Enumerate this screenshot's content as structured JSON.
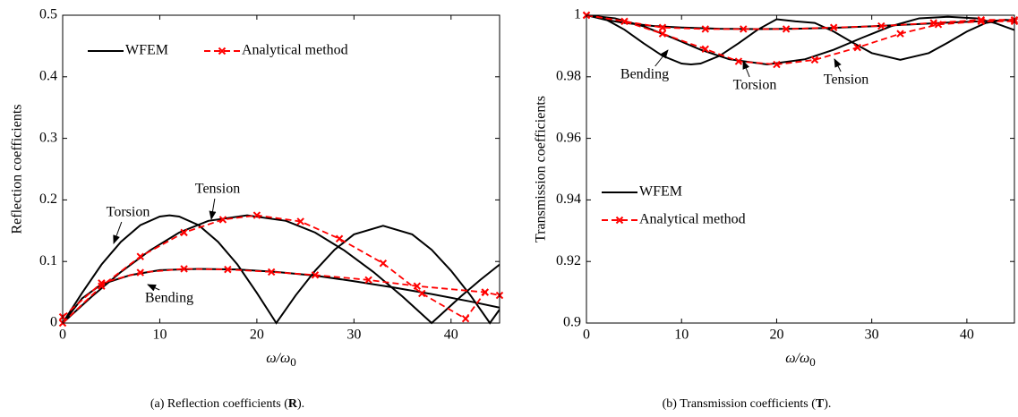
{
  "chart_data": [
    {
      "type": "line",
      "ylabel": "Reflection coefficients",
      "xlabel": "ω/ω",
      "xlabel_sub": "0",
      "caption_parts": [
        "(a)  Reflection coefficients (",
        "R",
        ")."
      ],
      "xlim": [
        0,
        45
      ],
      "xticks": [
        0,
        10,
        20,
        30,
        40
      ],
      "ylim": [
        0,
        0.5
      ],
      "yticks": [
        0,
        0.1,
        0.2,
        0.3,
        0.4,
        0.5
      ],
      "legend_loc": "upper left",
      "annotations": [
        "Torsion",
        "Tension",
        "Bending"
      ],
      "series": [
        {
          "name": "WFEM",
          "color": "#000000",
          "dashed": false,
          "marker": false,
          "curves": [
            {
              "x": [
                0,
                2,
                4,
                6,
                8,
                10,
                11,
                12,
                14,
                16,
                18,
                20,
                22,
                24,
                26,
                28,
                30,
                33,
                36,
                38,
                40,
                42,
                44,
                45
              ],
              "values": [
                0,
                0.049,
                0.095,
                0.132,
                0.159,
                0.173,
                0.175,
                0.173,
                0.159,
                0.132,
                0.095,
                0.049,
                0,
                0.045,
                0.085,
                0.119,
                0.144,
                0.158,
                0.144,
                0.119,
                0.085,
                0.045,
                0,
                0.022
              ]
            },
            {
              "x": [
                0,
                3,
                6,
                9,
                12,
                15,
                19,
                23,
                26,
                29,
                32,
                35,
                38,
                41,
                43,
                45
              ],
              "values": [
                0,
                0.043,
                0.083,
                0.118,
                0.147,
                0.166,
                0.175,
                0.166,
                0.147,
                0.118,
                0.083,
                0.043,
                0,
                0.043,
                0.07,
                0.095
              ]
            },
            {
              "x": [
                0,
                2,
                4,
                7,
                10,
                14,
                18,
                22,
                26,
                30,
                34,
                38,
                42,
                45
              ],
              "values": [
                0,
                0.04,
                0.063,
                0.078,
                0.086,
                0.088,
                0.087,
                0.083,
                0.077,
                0.068,
                0.058,
                0.047,
                0.035,
                0.025
              ]
            }
          ]
        },
        {
          "name": "Analytical method",
          "color": "#ff0000",
          "dashed": true,
          "marker": true,
          "curves": [
            {
              "x": [
                0,
                4,
                8,
                12.5,
                16.5,
                20,
                24.5,
                28.5,
                33,
                37,
                41.5,
                43.5
              ],
              "values": [
                0,
                0.06,
                0.108,
                0.147,
                0.168,
                0.175,
                0.165,
                0.137,
                0.097,
                0.048,
                0.007,
                0.05
              ]
            },
            {
              "x": [
                0,
                4,
                8,
                12.5,
                17,
                21.5,
                26,
                31.5,
                36.5,
                43.5,
                45
              ],
              "values": [
                0.01,
                0.065,
                0.082,
                0.088,
                0.087,
                0.083,
                0.078,
                0.07,
                0.06,
                0.05,
                0.045
              ]
            }
          ]
        }
      ]
    },
    {
      "type": "line",
      "ylabel": "Transmission coefficients",
      "xlabel": "ω/ω",
      "xlabel_sub": "0",
      "caption_parts": [
        "(b)  Transmission coefficients (",
        "T",
        ")."
      ],
      "xlim": [
        0,
        45
      ],
      "xticks": [
        0,
        10,
        20,
        30,
        40
      ],
      "ylim": [
        0.9,
        1
      ],
      "yticks": [
        0.9,
        0.92,
        0.94,
        0.96,
        0.98,
        1
      ],
      "legend_loc": "center left",
      "annotations": [
        "Bending",
        "Torsion",
        "Tension"
      ],
      "series": [
        {
          "name": "WFEM",
          "color": "#000000",
          "dashed": false,
          "marker": false,
          "curves": [
            {
              "x": [
                0,
                2,
                4,
                6,
                8,
                10,
                11,
                12,
                14,
                16,
                18,
                20,
                22,
                24,
                26,
                28,
                30,
                33,
                36,
                38,
                40,
                42,
                44,
                45
              ],
              "values": [
                1,
                0.9987,
                0.9953,
                0.9909,
                0.9868,
                0.9843,
                0.984,
                0.9843,
                0.9868,
                0.9909,
                0.9953,
                0.9987,
                0.998,
                0.9975,
                0.9947,
                0.9911,
                0.9877,
                0.9855,
                0.9877,
                0.9911,
                0.9947,
                0.9975,
                0.9985,
                0.9982
              ]
            },
            {
              "x": [
                0,
                3,
                6,
                9,
                12,
                15,
                19,
                23,
                26,
                29,
                32,
                35,
                38,
                41,
                43,
                45
              ],
              "values": [
                1,
                0.999,
                0.9964,
                0.9927,
                0.9888,
                0.9857,
                0.984,
                0.9857,
                0.9888,
                0.9927,
                0.9964,
                0.999,
                0.9995,
                0.999,
                0.9974,
                0.9952
              ]
            },
            {
              "x": [
                0,
                2,
                4,
                7,
                10,
                14,
                18,
                22,
                26,
                30,
                34,
                38,
                42,
                45
              ],
              "values": [
                1,
                0.9985,
                0.9975,
                0.9965,
                0.996,
                0.9956,
                0.9955,
                0.9956,
                0.9959,
                0.9964,
                0.997,
                0.9976,
                0.9981,
                0.9985
              ]
            }
          ]
        },
        {
          "name": "Analytical method",
          "color": "#ff0000",
          "dashed": true,
          "marker": true,
          "curves": [
            {
              "x": [
                0,
                4,
                8,
                12.5,
                16,
                20,
                24,
                28.5,
                33,
                37,
                41.5,
                45
              ],
              "values": [
                1,
                0.998,
                0.994,
                0.989,
                0.985,
                0.984,
                0.9855,
                0.9895,
                0.994,
                0.997,
                0.998,
                0.998
              ]
            },
            {
              "x": [
                0,
                8,
                12.5,
                16.5,
                21,
                26,
                31,
                36.5,
                41.5,
                45
              ],
              "values": [
                1,
                0.996,
                0.9955,
                0.9955,
                0.9955,
                0.996,
                0.9965,
                0.9975,
                0.9985,
                0.9985
              ]
            }
          ]
        }
      ]
    }
  ]
}
